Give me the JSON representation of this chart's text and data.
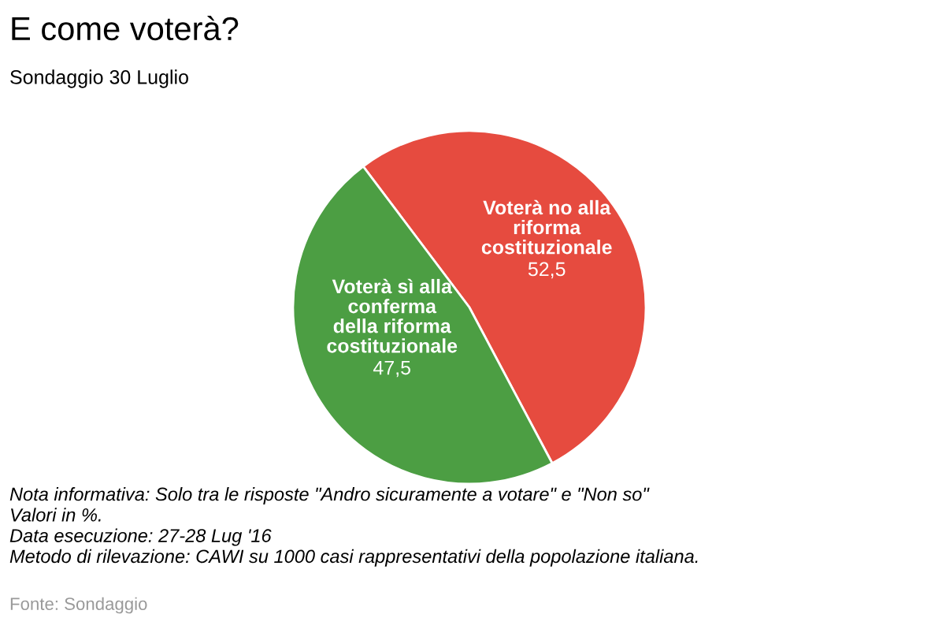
{
  "chart_data": {
    "type": "pie",
    "title": "E come voterà?",
    "subtitle": "Sondaggio 30 Luglio",
    "categories": [
      "Voterà no alla\nriforma\ncostituzionale",
      "Voterà sì alla\nconferma\ndella riforma\ncostituzionale"
    ],
    "values": [
      52.5,
      47.5
    ],
    "colors": [
      "#e64b3f",
      "#4c9e43"
    ],
    "value_labels": [
      "52,5",
      "47,5"
    ],
    "annotations": [
      "Nota informativa: Solo tra le risposte \"Andro sicuramente a votare\" e \"Non so\"\nValori in %.\nData esecuzione: 27-28 Lug '16\nMetodo di rilevazione: CAWI su 1000 casi rappresentativi della popolazione italiana.",
      "Fonte: Sondaggio"
    ]
  }
}
